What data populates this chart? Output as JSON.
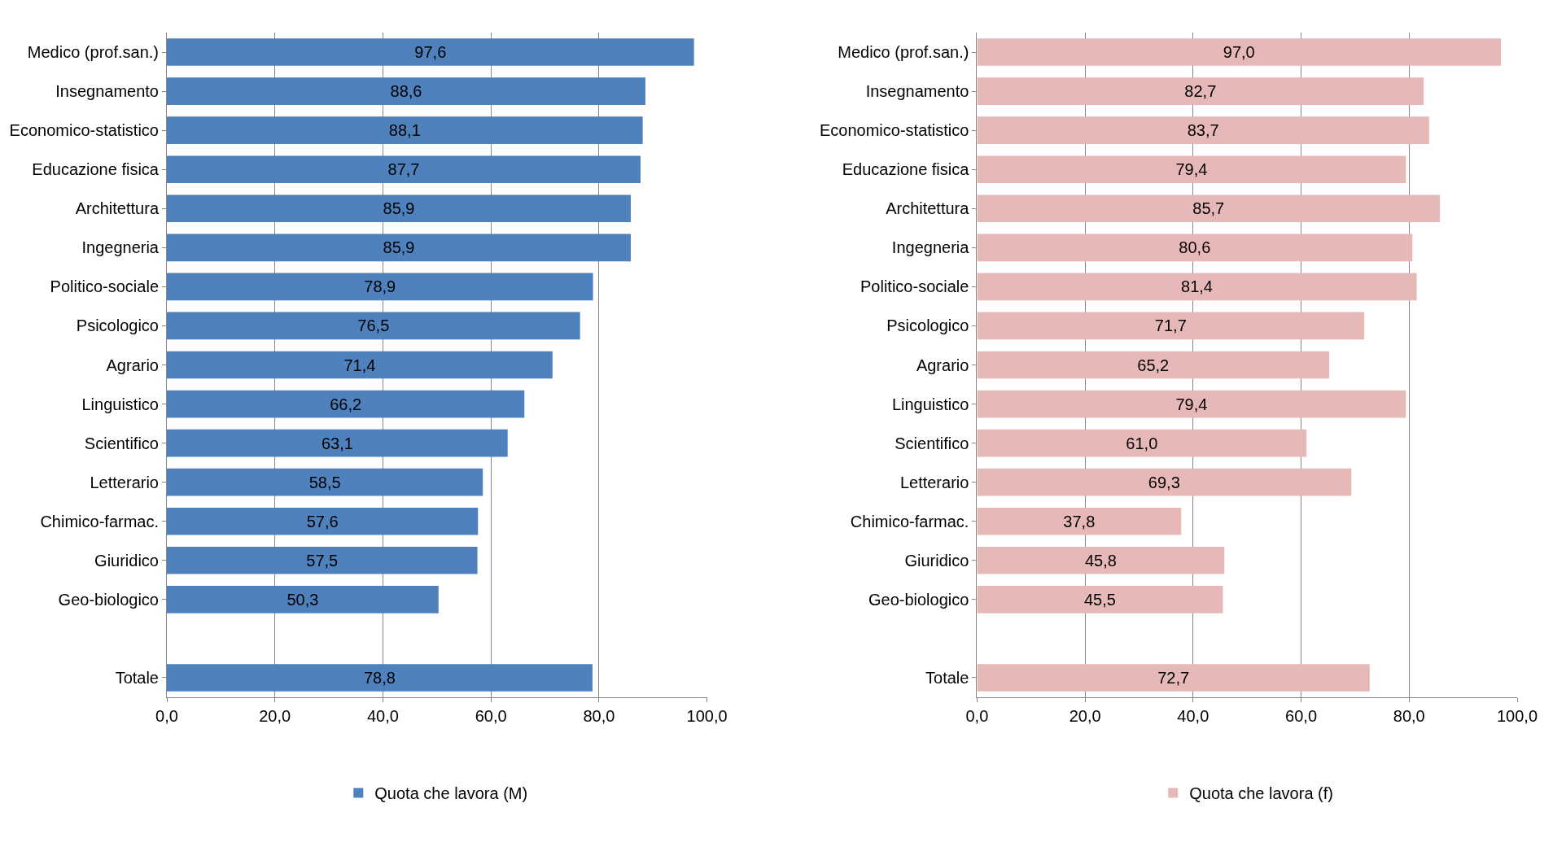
{
  "chart_data": [
    {
      "type": "bar",
      "orientation": "horizontal",
      "grid": "x",
      "legend": "bottom",
      "categories": [
        "Medico (prof.san.)",
        "Insegnamento",
        "Economico-statistico",
        "Educazione fisica",
        "Architettura",
        "Ingegneria",
        "Politico-sociale",
        "Psicologico",
        "Agrario",
        "Linguistico",
        "Scientifico",
        "Letterario",
        "Chimico-farmac.",
        "Giuridico",
        "Geo-biologico",
        null,
        "Totale"
      ],
      "series": [
        {
          "name": "Quota che lavora (M)",
          "color": "#4f81bd",
          "values": [
            97.6,
            88.6,
            88.1,
            87.7,
            85.9,
            85.9,
            78.9,
            76.5,
            71.4,
            66.2,
            63.1,
            58.5,
            57.6,
            57.5,
            50.3,
            null,
            78.8
          ],
          "value_labels": [
            "97,6",
            "88,6",
            "88,1",
            "87,7",
            "85,9",
            "85,9",
            "78,9",
            "76,5",
            "71,4",
            "66,2",
            "63,1",
            "58,5",
            "57,6",
            "57,5",
            "50,3",
            null,
            "78,8"
          ]
        }
      ],
      "xlim": [
        0,
        100
      ],
      "xticks": [
        {
          "value": 0,
          "label": "0,0"
        },
        {
          "value": 20,
          "label": "20,0"
        },
        {
          "value": 40,
          "label": "40,0"
        },
        {
          "value": 60,
          "label": "60,0"
        },
        {
          "value": 80,
          "label": "80,0"
        },
        {
          "value": 100,
          "label": "100,0"
        }
      ]
    },
    {
      "type": "bar",
      "orientation": "horizontal",
      "grid": "x",
      "legend": "bottom",
      "categories": [
        "Medico (prof.san.)",
        "Insegnamento",
        "Economico-statistico",
        "Educazione fisica",
        "Architettura",
        "Ingegneria",
        "Politico-sociale",
        "Psicologico",
        "Agrario",
        "Linguistico",
        "Scientifico",
        "Letterario",
        "Chimico-farmac.",
        "Giuridico",
        "Geo-biologico",
        null,
        "Totale"
      ],
      "series": [
        {
          "name": "Quota che lavora (f)",
          "color": "#e6b9b8",
          "values": [
            97.0,
            82.7,
            83.7,
            79.4,
            85.7,
            80.6,
            81.4,
            71.7,
            65.2,
            79.4,
            61.0,
            69.3,
            37.8,
            45.8,
            45.5,
            null,
            72.7
          ],
          "value_labels": [
            "97,0",
            "82,7",
            "83,7",
            "79,4",
            "85,7",
            "80,6",
            "81,4",
            "71,7",
            "65,2",
            "79,4",
            "61,0",
            "69,3",
            "37,8",
            "45,8",
            "45,5",
            null,
            "72,7"
          ]
        }
      ],
      "xlim": [
        0,
        100
      ],
      "xticks": [
        {
          "value": 0,
          "label": "0,0"
        },
        {
          "value": 20,
          "label": "20,0"
        },
        {
          "value": 40,
          "label": "40,0"
        },
        {
          "value": 60,
          "label": "60,0"
        },
        {
          "value": 80,
          "label": "80,0"
        },
        {
          "value": 100,
          "label": "100,0"
        }
      ]
    }
  ]
}
